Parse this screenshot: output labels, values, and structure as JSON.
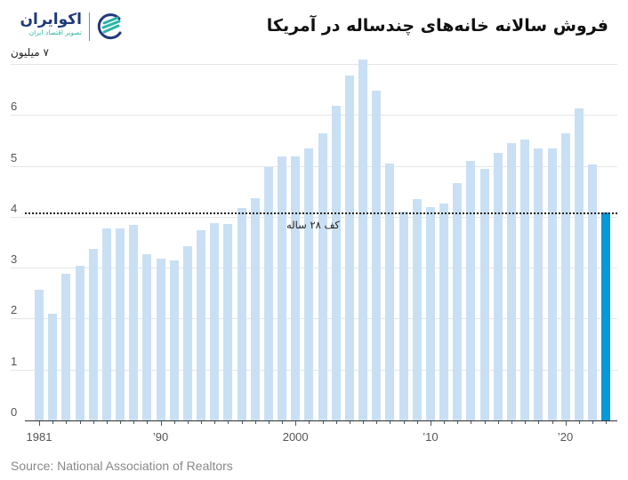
{
  "header": {
    "title": "فروش سالانه خانه‌های چندساله در آمریکا",
    "logo": {
      "name": "اکوایران",
      "subtitle": "تصویر اقتصاد ایران",
      "icon": "ecoiran-swirl-logo-icon"
    }
  },
  "axis": {
    "y_unit_label": "۷ میلیون",
    "y_ticks": [
      "0",
      "1",
      "2",
      "3",
      "4",
      "5",
      "6"
    ],
    "x_tick_labels": [
      "1981",
      "’90",
      "2000",
      "’10",
      "’20"
    ]
  },
  "annotation": {
    "label": "کف ۲۸ ساله",
    "value": 4.06
  },
  "footer": {
    "source": "Source: National Association of Realtors"
  },
  "colors": {
    "bar": "#c9e0f4",
    "highlight_bar": "#0798d8",
    "title": "#111111",
    "logo_blue": "#1f3a7a",
    "logo_teal": "#2bb5a8"
  },
  "chart_data": {
    "type": "bar",
    "title": "فروش سالانه خانه‌های چندساله در آمریکا",
    "xlabel": "",
    "ylabel": "میلیون",
    "ylim": [
      0,
      7
    ],
    "y_ticks": [
      0,
      1,
      2,
      3,
      4,
      5,
      6,
      7
    ],
    "grid": true,
    "legend": null,
    "categories": [
      1981,
      1982,
      1983,
      1984,
      1985,
      1986,
      1987,
      1988,
      1989,
      1990,
      1991,
      1992,
      1993,
      1994,
      1995,
      1996,
      1997,
      1998,
      1999,
      2000,
      2001,
      2002,
      2003,
      2004,
      2005,
      2006,
      2007,
      2008,
      2009,
      2010,
      2011,
      2012,
      2013,
      2014,
      2015,
      2016,
      2017,
      2018,
      2019,
      2020,
      2021,
      2022,
      2023
    ],
    "values": [
      2.57,
      2.1,
      2.88,
      3.03,
      3.37,
      3.77,
      3.77,
      3.84,
      3.27,
      3.18,
      3.14,
      3.43,
      3.74,
      3.87,
      3.85,
      4.17,
      4.37,
      4.97,
      5.18,
      5.18,
      5.34,
      5.63,
      6.18,
      6.78,
      7.08,
      6.48,
      5.04,
      4.11,
      4.34,
      4.19,
      4.26,
      4.66,
      5.09,
      4.94,
      5.25,
      5.45,
      5.51,
      5.34,
      5.34,
      5.64,
      6.12,
      5.03,
      4.09
    ],
    "highlight": [
      2023
    ],
    "x_tick_labels": [
      "1981",
      "’90",
      "2000",
      "’10",
      "’20"
    ],
    "annotations": [
      {
        "type": "hline",
        "y": 4.06,
        "style": "dotted",
        "text": "کف ۲۸ ساله"
      }
    ],
    "source": "Source: National Association of Realtors"
  }
}
